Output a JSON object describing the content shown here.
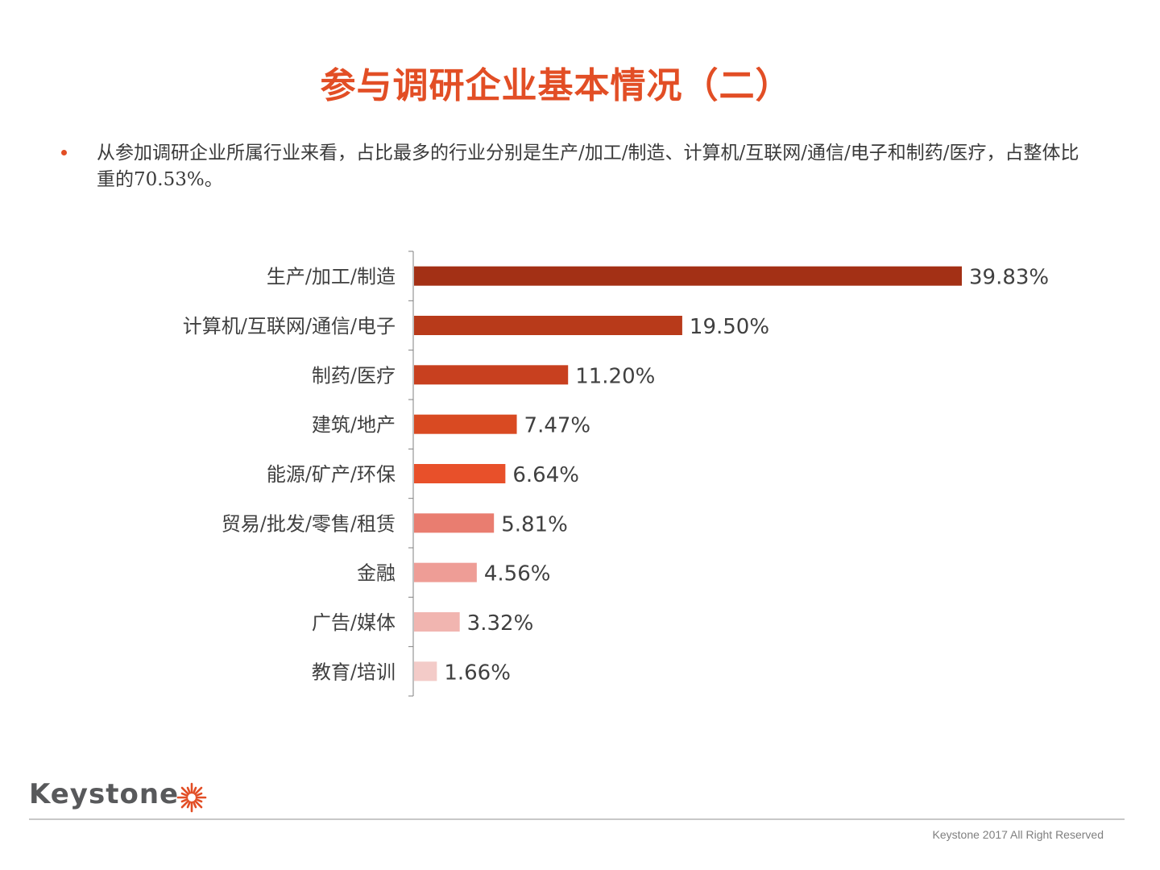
{
  "header": {
    "title": "参与调研企业基本情况（二）"
  },
  "summary": {
    "bullet": "从参加调研企业所属行业来看，占比最多的行业分别是生产/加工/制造、计算机/互联网/通信/电子和制药/医疗，占整体比重的70.53%。"
  },
  "chart_data": {
    "type": "bar",
    "orientation": "horizontal",
    "title": "",
    "xlabel": "",
    "ylabel": "",
    "xlim": [
      0,
      40
    ],
    "grid": false,
    "legend": "none",
    "categories": [
      "生产/加工/制造",
      "计算机/互联网/通信/电子",
      "制药/医疗",
      "建筑/地产",
      "能源/矿产/环保",
      "贸易/批发/零售/租赁",
      "金融",
      "广告/媒体",
      "教育/培训"
    ],
    "values": [
      39.83,
      19.5,
      11.2,
      7.47,
      6.64,
      5.81,
      4.56,
      3.32,
      1.66
    ],
    "value_labels": [
      "39.83%",
      "19.50%",
      "11.20%",
      "7.47%",
      "6.64%",
      "5.81%",
      "4.56%",
      "3.32%",
      "1.66%"
    ],
    "colors": [
      "#A33015",
      "#B83A1A",
      "#C8401F",
      "#D94A22",
      "#E8502A",
      "#E97D70",
      "#EE9D96",
      "#F1B5B0",
      "#F3CBC8"
    ]
  },
  "footer": {
    "logo_text": "Keystone",
    "logo_mark": "starburst-logo",
    "copyright": "Keystone 2017 All Right Reserved"
  },
  "theme": {
    "accent": "#E24E25",
    "text": "#404040",
    "axis": "#808080"
  }
}
